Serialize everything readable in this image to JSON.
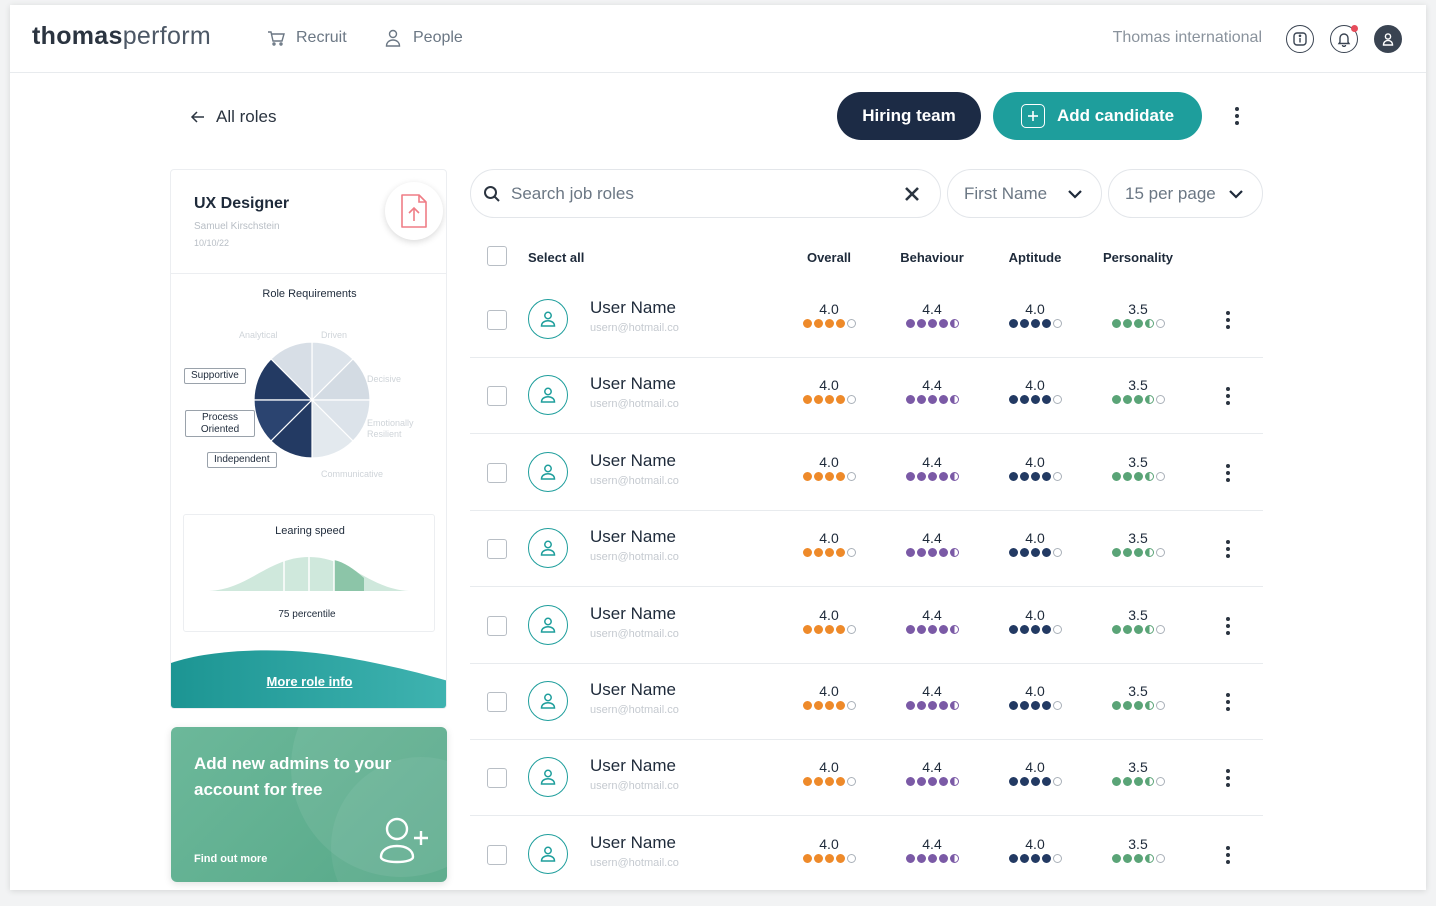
{
  "colors": {
    "brand_teal": "#1e9e9c",
    "navy": "#1c2b45",
    "overall": "#ee8a2a",
    "behaviour": "#7b5aa6",
    "aptitude": "#233a63",
    "personality": "#5aa477",
    "empty_dot": "#aab1b9"
  },
  "header": {
    "logo_bold": "thomas",
    "logo_light": "perform",
    "nav": [
      {
        "label": "Recruit",
        "icon": "cart-icon"
      },
      {
        "label": "People",
        "icon": "person-icon"
      }
    ],
    "org_name": "Thomas international",
    "icons": [
      "info-icon",
      "bell-icon",
      "account-icon"
    ]
  },
  "toolbar": {
    "back_label": "All roles",
    "hiring_team_label": "Hiring team",
    "add_candidate_label": "Add candidate"
  },
  "role": {
    "title": "UX Designer",
    "owner": "Samuel Kirschstein",
    "date": "10/10/22",
    "requirements_title": "Role Requirements",
    "traits_faint": [
      "Analytical",
      "Driven",
      "Decisive",
      "Emotionally Resilient",
      "Communicative"
    ],
    "traits_selected": [
      "Supportive",
      "Process Oriented",
      "Independent"
    ],
    "learning_speed_title": "Learing speed",
    "learning_speed_value": "75 percentile",
    "learning_speed_fraction": 0.75,
    "more_info_label": "More role info"
  },
  "promo": {
    "title": "Add new admins to your account for free",
    "link": "Find out more"
  },
  "filters": {
    "search_placeholder": "Search job roles",
    "sort_value": "First Name",
    "per_page_value": "15 per page"
  },
  "table": {
    "select_all_label": "Select all",
    "columns": [
      "Overall",
      "Behaviour",
      "Aptitude",
      "Personality"
    ],
    "rows": [
      {
        "name": "User Name",
        "email": "usern@hotmail.co",
        "overall": "4.0",
        "behaviour": "4.4",
        "aptitude": "4.0",
        "personality": "3.5"
      },
      {
        "name": "User Name",
        "email": "usern@hotmail.co",
        "overall": "4.0",
        "behaviour": "4.4",
        "aptitude": "4.0",
        "personality": "3.5"
      },
      {
        "name": "User Name",
        "email": "usern@hotmail.co",
        "overall": "4.0",
        "behaviour": "4.4",
        "aptitude": "4.0",
        "personality": "3.5"
      },
      {
        "name": "User Name",
        "email": "usern@hotmail.co",
        "overall": "4.0",
        "behaviour": "4.4",
        "aptitude": "4.0",
        "personality": "3.5"
      },
      {
        "name": "User Name",
        "email": "usern@hotmail.co",
        "overall": "4.0",
        "behaviour": "4.4",
        "aptitude": "4.0",
        "personality": "3.5"
      },
      {
        "name": "User Name",
        "email": "usern@hotmail.co",
        "overall": "4.0",
        "behaviour": "4.4",
        "aptitude": "4.0",
        "personality": "3.5"
      },
      {
        "name": "User Name",
        "email": "usern@hotmail.co",
        "overall": "4.0",
        "behaviour": "4.4",
        "aptitude": "4.0",
        "personality": "3.5"
      },
      {
        "name": "User Name",
        "email": "usern@hotmail.co",
        "overall": "4.0",
        "behaviour": "4.4",
        "aptitude": "4.0",
        "personality": "3.5"
      }
    ]
  }
}
